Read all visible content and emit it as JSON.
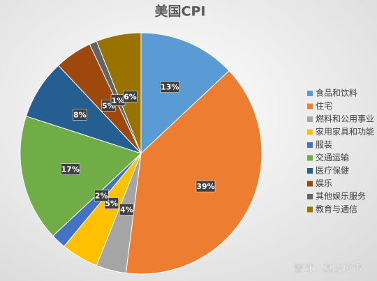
{
  "chart_data": {
    "type": "pie",
    "title": "美国CPI",
    "categories": [
      "食品和饮料",
      "住宅",
      "燃料和公用事业",
      "家用家具和功能",
      "服装",
      "交通运输",
      "医疗保健",
      "娱乐",
      "其他娱乐服务",
      "教育与通信"
    ],
    "values": [
      13,
      39,
      4,
      5,
      2,
      17,
      8,
      5,
      1,
      6
    ],
    "value_labels": [
      "13%",
      "39%",
      "4%",
      "5%",
      "2%",
      "17%",
      "8%",
      "5%",
      "1%",
      "6%"
    ],
    "colors": [
      "#5b9bd5",
      "#ed7d31",
      "#a5a5a5",
      "#ffc000",
      "#4472c4",
      "#70ad47",
      "#255e91",
      "#9e480e",
      "#636363",
      "#997300"
    ],
    "legend": "right"
  },
  "watermark": "雪球：基股传声"
}
